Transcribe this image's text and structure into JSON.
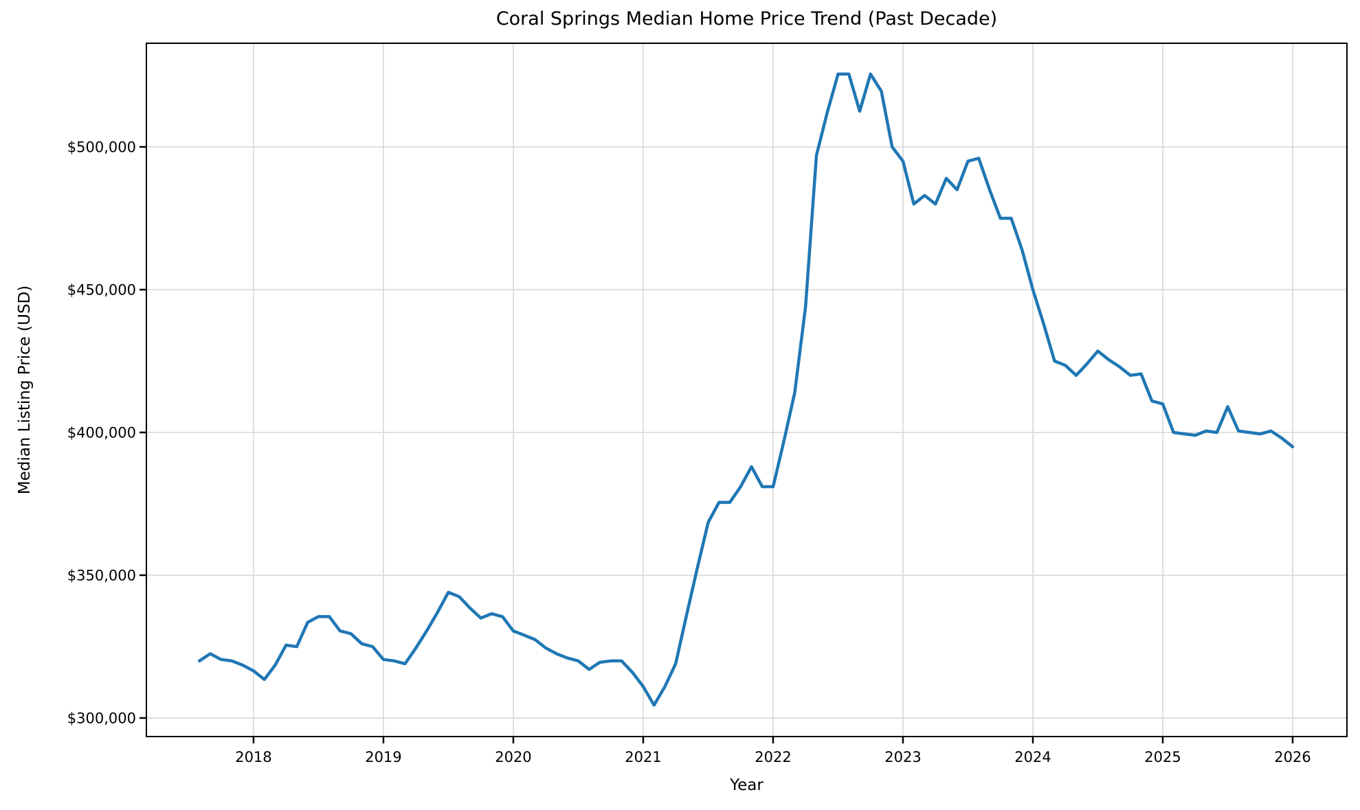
{
  "chart_data": {
    "type": "line",
    "title": "Coral Springs Median Home Price Trend (Past Decade)",
    "xlabel": "Year",
    "ylabel": "Median Listing Price (USD)",
    "legend": "none",
    "grid": true,
    "line_color": "#1f77b4",
    "xlim": [
      2017.175,
      2026.418
    ],
    "ylim": [
      293500,
      536300
    ],
    "x_ticks": [
      {
        "value": 2018,
        "label": "2018"
      },
      {
        "value": 2019,
        "label": "2019"
      },
      {
        "value": 2020,
        "label": "2020"
      },
      {
        "value": 2021,
        "label": "2021"
      },
      {
        "value": 2022,
        "label": "2022"
      },
      {
        "value": 2023,
        "label": "2023"
      },
      {
        "value": 2024,
        "label": "2024"
      },
      {
        "value": 2025,
        "label": "2025"
      },
      {
        "value": 2026,
        "label": "2026"
      }
    ],
    "y_ticks": [
      {
        "value": 300000,
        "label": "$300,000"
      },
      {
        "value": 350000,
        "label": "$350,000"
      },
      {
        "value": 400000,
        "label": "$400,000"
      },
      {
        "value": 450000,
        "label": "$450,000"
      },
      {
        "value": 500000,
        "label": "$500,000"
      }
    ],
    "series": [
      {
        "name": "Median Listing Price",
        "dates": [
          "2017-08",
          "2017-09",
          "2017-10",
          "2017-11",
          "2017-12",
          "2018-01",
          "2018-02",
          "2018-03",
          "2018-04",
          "2018-05",
          "2018-06",
          "2018-07",
          "2018-08",
          "2018-09",
          "2018-10",
          "2018-11",
          "2018-12",
          "2019-01",
          "2019-02",
          "2019-03",
          "2019-04",
          "2019-05",
          "2019-06",
          "2019-07",
          "2019-08",
          "2019-09",
          "2019-10",
          "2019-11",
          "2019-12",
          "2020-01",
          "2020-02",
          "2020-03",
          "2020-04",
          "2020-05",
          "2020-06",
          "2020-07",
          "2020-08",
          "2020-09",
          "2020-10",
          "2020-11",
          "2020-12",
          "2021-01",
          "2021-02",
          "2021-03",
          "2021-04",
          "2021-05",
          "2021-06",
          "2021-07",
          "2021-08",
          "2021-09",
          "2021-10",
          "2021-11",
          "2021-12",
          "2022-01",
          "2022-02",
          "2022-03",
          "2022-04",
          "2022-05",
          "2022-06",
          "2022-07",
          "2022-08",
          "2022-09",
          "2022-10",
          "2022-11",
          "2022-12",
          "2023-01",
          "2023-02",
          "2023-03",
          "2023-04",
          "2023-05",
          "2023-06",
          "2023-07",
          "2023-08",
          "2023-09",
          "2023-10",
          "2023-11",
          "2023-12",
          "2024-01",
          "2024-02",
          "2024-03",
          "2024-04",
          "2024-05",
          "2024-06",
          "2024-07",
          "2024-08",
          "2024-09",
          "2024-10",
          "2024-11",
          "2024-12",
          "2025-01",
          "2025-02",
          "2025-03",
          "2025-04",
          "2025-05",
          "2025-06",
          "2025-07",
          "2025-08",
          "2025-09",
          "2025-10",
          "2025-11",
          "2025-12",
          "2026-01"
        ],
        "values": [
          320000,
          322500,
          320500,
          320000,
          318500,
          316500,
          313500,
          318500,
          325500,
          325000,
          333500,
          335500,
          335500,
          330500,
          329500,
          326000,
          325000,
          320500,
          320000,
          319000,
          324500,
          330500,
          337000,
          344000,
          342500,
          338500,
          335000,
          336500,
          335500,
          330500,
          329000,
          327500,
          324500,
          322500,
          321000,
          320000,
          317000,
          319500,
          320000,
          320000,
          316000,
          311000,
          304500,
          311000,
          319000,
          336000,
          352500,
          368500,
          375500,
          375500,
          381000,
          388000,
          381000,
          381000,
          397000,
          414000,
          444000,
          497000,
          512000,
          525500,
          525500,
          512500,
          525500,
          519500,
          500000,
          495000,
          480000,
          483000,
          480000,
          489000,
          485000,
          495000,
          496000,
          485000,
          475000,
          475000,
          464000,
          450000,
          438000,
          425000,
          423500,
          420000,
          424000,
          428500,
          425500,
          423000,
          420000,
          420500,
          411000,
          410000,
          400000,
          399500,
          399000,
          400500,
          400000,
          409000,
          400500,
          400000,
          399500,
          400500,
          398000,
          395000
        ]
      }
    ]
  }
}
